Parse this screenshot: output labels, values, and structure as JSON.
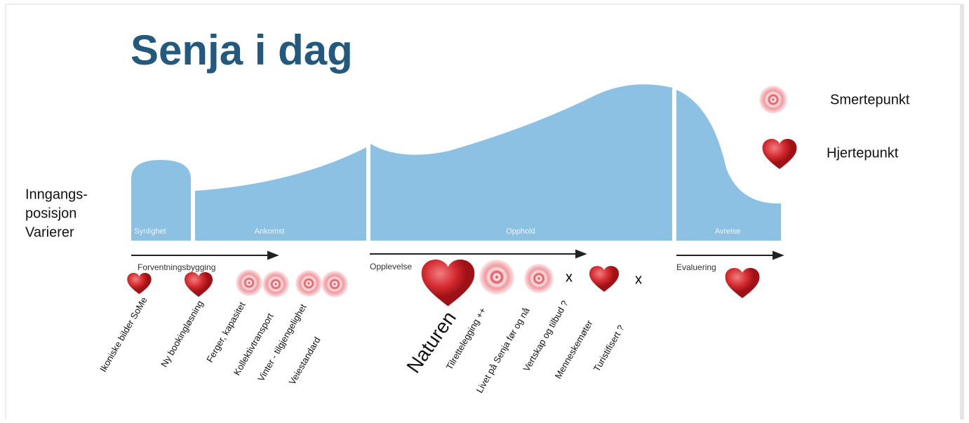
{
  "header": {
    "title": "Senja i dag"
  },
  "legend": {
    "pain": "Smertepunkt",
    "heart": "Hjertepunkt"
  },
  "entry_note": [
    "Inngangs-",
    "posisjon",
    "Varierer"
  ],
  "stages": [
    "Synlighet",
    "Ankomst",
    "Opphold",
    "Avreise"
  ],
  "phases": [
    "Forventningsbygging",
    "Opplevelse",
    "Evaluering"
  ],
  "touchpoints": [
    "Ikoniske bilder SoMe",
    "Ny bookingløsning",
    "Ferger,  kapasitet",
    "Kollektivtransport",
    "Vinter - tilgjengelighet",
    "Veiestandard",
    "Naturen",
    "Tilrettelegging ++",
    "Livet på Senja før og nå",
    "Vertskap  og tilbud ?",
    "Menneskemøter",
    "Turistifisert ?"
  ],
  "markers": [
    "x",
    "x"
  ]
}
